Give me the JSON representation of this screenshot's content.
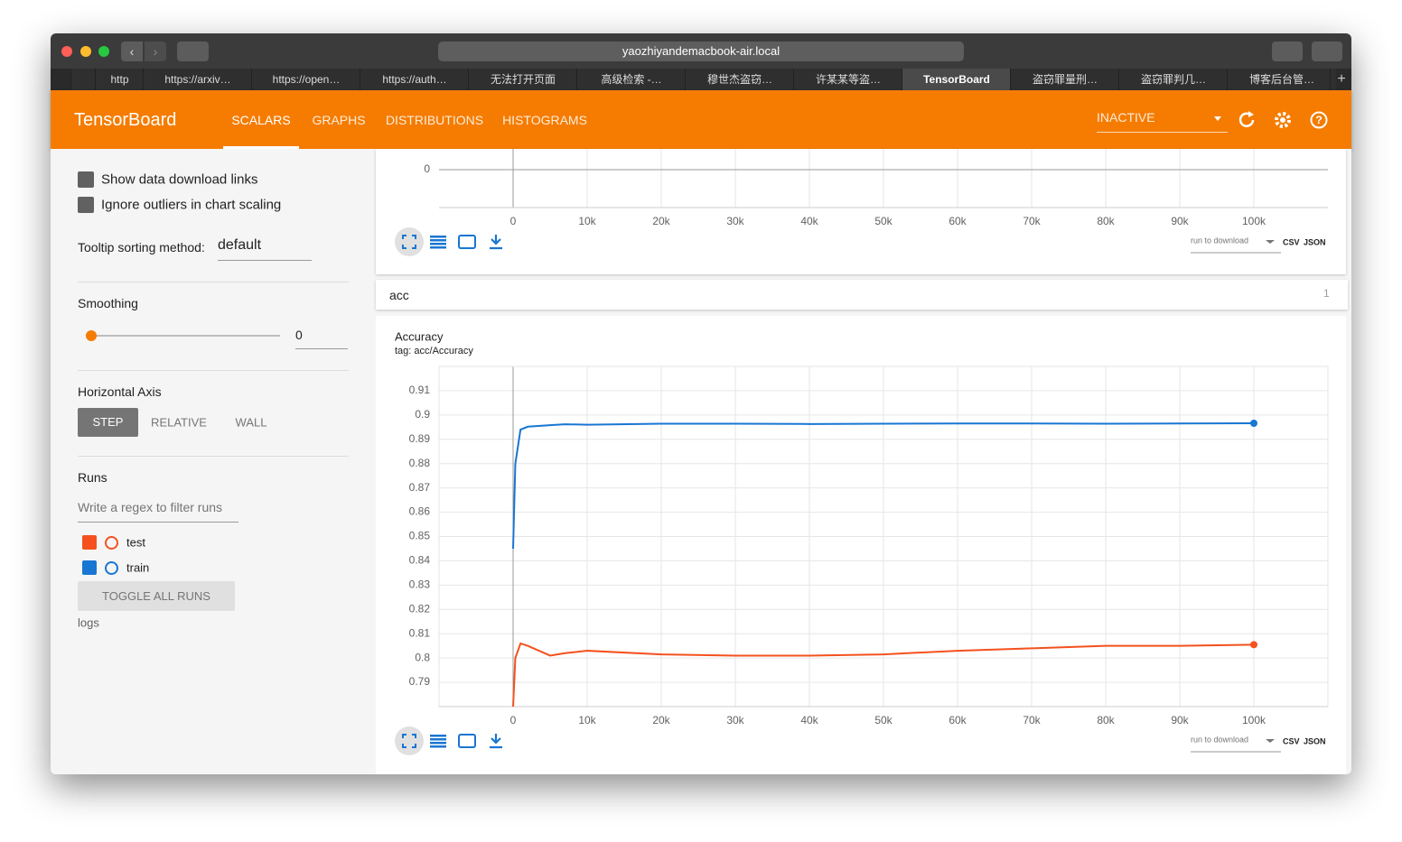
{
  "browser": {
    "url": "yaozhiyandemacbook-air.local",
    "tabs": [
      "http",
      "https://arxiv…",
      "https://open…",
      "https://auth…",
      "无法打开页面",
      "高级检索 -…",
      "穆世杰盗窃…",
      "许某某等盗…",
      "TensorBoard",
      "盗窃罪量刑…",
      "盗窃罪判几…",
      "博客后台管…"
    ]
  },
  "header": {
    "title": "TensorBoard",
    "nav": [
      "SCALARS",
      "GRAPHS",
      "DISTRIBUTIONS",
      "HISTOGRAMS"
    ],
    "status": "INACTIVE"
  },
  "sidebar": {
    "checkboxes": [
      "Show data download links",
      "Ignore outliers in chart scaling"
    ],
    "tooltip_label": "Tooltip sorting method:",
    "tooltip_value": "default",
    "smoothing_label": "Smoothing",
    "smoothing_value": 0,
    "axis_label": "Horizontal Axis",
    "axis_options": [
      "STEP",
      "RELATIVE",
      "WALL"
    ],
    "runs_label": "Runs",
    "filter_placeholder": "Write a regex to filter runs",
    "runs": [
      {
        "name": "test",
        "color": "#f4511e"
      },
      {
        "name": "train",
        "color": "#1976d2"
      }
    ],
    "toggle": "TOGGLE ALL RUNS",
    "logdir": "logs"
  },
  "top_chart": {
    "yticks": [
      0
    ],
    "xlim": [
      -10000,
      110000
    ],
    "xticks": [
      0,
      {
        "value": 10000,
        "label": "10k"
      },
      {
        "value": 20000,
        "label": "20k"
      },
      {
        "value": 30000,
        "label": "30k"
      },
      {
        "value": 40000,
        "label": "40k"
      },
      {
        "value": 50000,
        "label": "50k"
      },
      {
        "value": 60000,
        "label": "60k"
      },
      {
        "value": 70000,
        "label": "70k"
      },
      {
        "value": 80000,
        "label": "80k"
      },
      {
        "value": 90000,
        "label": "90k"
      },
      {
        "value": 100000,
        "label": "100k"
      }
    ],
    "download_select": "run to download",
    "formats": [
      "CSV",
      "JSON"
    ]
  },
  "group": {
    "name": "acc",
    "count": 1
  },
  "chart": {
    "type": "line",
    "title": "Accuracy",
    "subtitle": "tag: acc/Accuracy",
    "grid": true,
    "x": [
      0,
      300,
      1000,
      2000,
      5000,
      7000,
      10000,
      20000,
      30000,
      40000,
      50000,
      60000,
      70000,
      80000,
      90000,
      100000
    ],
    "series": [
      {
        "color": "#1976d2",
        "values": [
          0.845,
          0.88,
          0.894,
          0.8952,
          0.8958,
          0.8962,
          0.896,
          0.8964,
          0.8964,
          0.8963,
          0.8964,
          0.8965,
          0.8965,
          0.8964,
          0.8965,
          0.8966
        ]
      },
      {
        "color": "#f4511e",
        "values": [
          0.78,
          0.8,
          0.806,
          0.805,
          0.801,
          0.802,
          0.803,
          0.8015,
          0.801,
          0.801,
          0.8015,
          0.803,
          0.804,
          0.805,
          0.805,
          0.8055
        ]
      }
    ],
    "xlim": [
      -10000,
      110000
    ],
    "xticks": [
      0,
      {
        "value": 10000,
        "label": "10k"
      },
      {
        "value": 20000,
        "label": "20k"
      },
      {
        "value": 30000,
        "label": "30k"
      },
      {
        "value": 40000,
        "label": "40k"
      },
      {
        "value": 50000,
        "label": "50k"
      },
      {
        "value": 60000,
        "label": "60k"
      },
      {
        "value": 70000,
        "label": "70k"
      },
      {
        "value": 80000,
        "label": "80k"
      },
      {
        "value": 90000,
        "label": "90k"
      },
      {
        "value": 100000,
        "label": "100k"
      }
    ],
    "ylim": [
      0.78,
      0.92
    ],
    "yticks": [
      0.79,
      0.8,
      0.81,
      0.82,
      0.83,
      0.84,
      0.85,
      0.86,
      0.87,
      0.88,
      0.89,
      0.9,
      0.91
    ],
    "download_select": "run to download",
    "formats": [
      "CSV",
      "JSON"
    ]
  }
}
